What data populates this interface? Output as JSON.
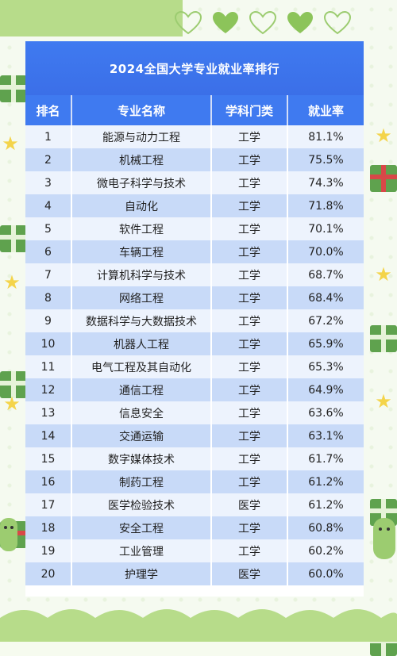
{
  "title": "2024全国大学专业就业率排行",
  "headers": [
    "排名",
    "专业名称",
    "学科门类",
    "就业率"
  ],
  "rows": [
    [
      "1",
      "能源与动力工程",
      "工学",
      "81.1%"
    ],
    [
      "2",
      "机械工程",
      "工学",
      "75.5%"
    ],
    [
      "3",
      "微电子科学与技术",
      "工学",
      "74.3%"
    ],
    [
      "4",
      "自动化",
      "工学",
      "71.8%"
    ],
    [
      "5",
      "软件工程",
      "工学",
      "70.1%"
    ],
    [
      "6",
      "车辆工程",
      "工学",
      "70.0%"
    ],
    [
      "7",
      "计算机科学与技术",
      "工学",
      "68.7%"
    ],
    [
      "8",
      "网络工程",
      "工学",
      "68.4%"
    ],
    [
      "9",
      "数据科学与大数据技术",
      "工学",
      "67.2%"
    ],
    [
      "10",
      "机器人工程",
      "工学",
      "65.9%"
    ],
    [
      "11",
      "电气工程及其自动化",
      "工学",
      "65.3%"
    ],
    [
      "12",
      "通信工程",
      "工学",
      "64.9%"
    ],
    [
      "13",
      "信息安全",
      "工学",
      "63.6%"
    ],
    [
      "14",
      "交通运输",
      "工学",
      "63.1%"
    ],
    [
      "15",
      "数字媒体技术",
      "工学",
      "61.7%"
    ],
    [
      "16",
      "制药工程",
      "工学",
      "61.2%"
    ],
    [
      "17",
      "医学检验技术",
      "医学",
      "61.2%"
    ],
    [
      "18",
      "安全工程",
      "工学",
      "60.8%"
    ],
    [
      "19",
      "工业管理",
      "工学",
      "60.2%"
    ],
    [
      "20",
      "护理学",
      "医学",
      "60.0%"
    ]
  ],
  "colors": {
    "header_blue": "#3f7af0",
    "row_light": "#edf3fd",
    "row_dark": "#c8daf8",
    "decor_green": "#5fa24e"
  },
  "icons": [
    "heart-icon",
    "gift-icon",
    "star-icon",
    "plant-icon"
  ]
}
